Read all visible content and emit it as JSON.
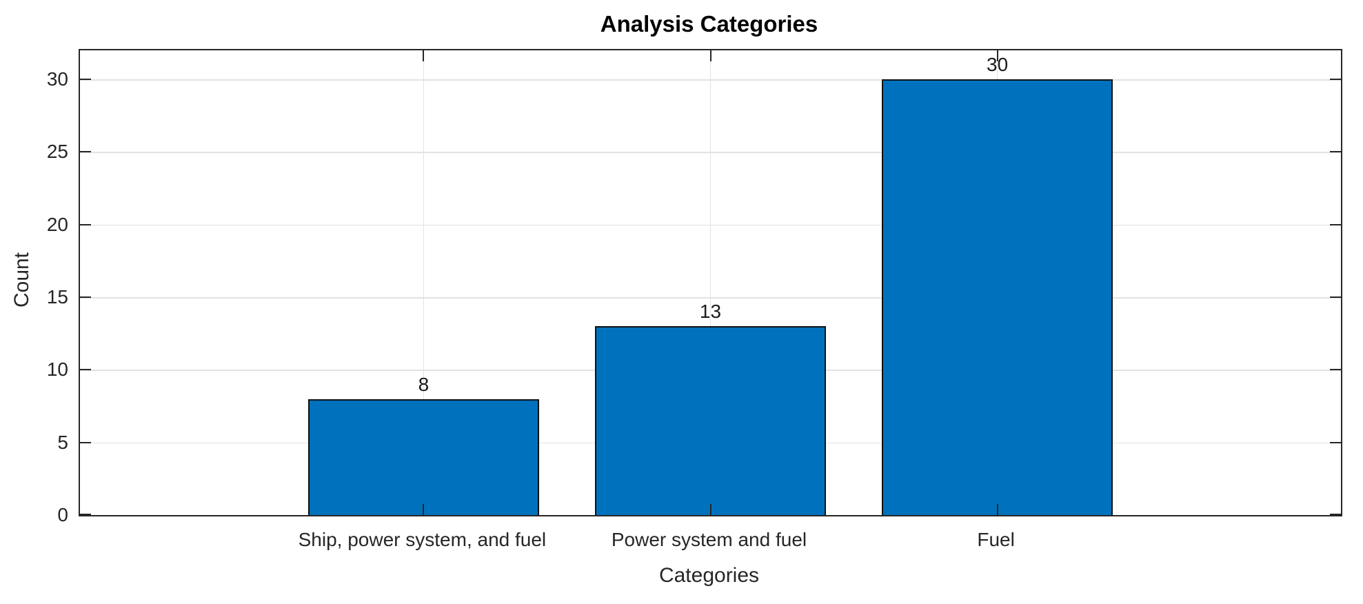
{
  "chart_data": {
    "type": "bar",
    "title": "Analysis Categories",
    "xlabel": "Categories",
    "ylabel": "Count",
    "categories": [
      "Ship, power system, and fuel",
      "Power system and fuel",
      "Fuel"
    ],
    "values": [
      8,
      13,
      30
    ],
    "bar_value_labels": [
      "8",
      "13",
      "30"
    ],
    "yticks": [
      0,
      5,
      10,
      15,
      20,
      25,
      30
    ],
    "ytick_labels": [
      "0",
      "5",
      "10",
      "15",
      "20",
      "25",
      "30"
    ],
    "ylim": [
      0,
      32
    ],
    "grid": "on",
    "legend": "none",
    "colors": {
      "bar_fill": "#0072BD",
      "bar_edge": "#111111",
      "axis": "#262626",
      "grid": "#e2e2e2",
      "title_text": "#000000",
      "background": "#ffffff"
    }
  }
}
